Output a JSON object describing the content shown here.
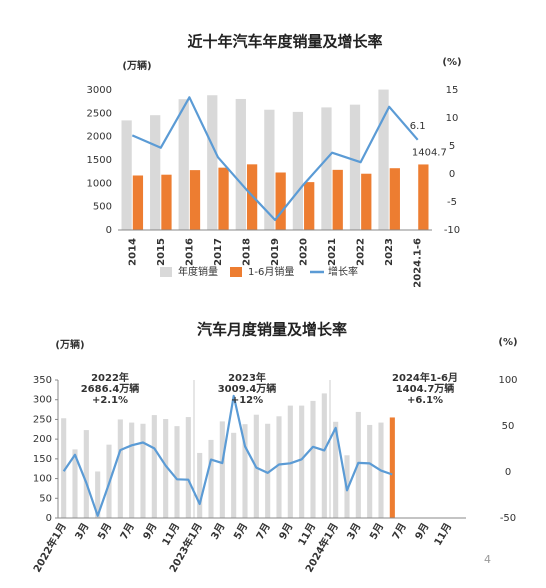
{
  "chart_data": [
    {
      "type": "bar",
      "title": "近十年汽车年度销量及增长率",
      "ylabel": "(万辆)",
      "y2label": "(%)",
      "categories": [
        "2014",
        "2015",
        "2016",
        "2017",
        "2018",
        "2019",
        "2020",
        "2021",
        "2022",
        "2023",
        "2024.1-6"
      ],
      "series": [
        {
          "name": "年度销量",
          "type": "bar",
          "color": "#d9d9d9",
          "values": [
            2349,
            2460,
            2803,
            2888,
            2808,
            2577,
            2531,
            2627,
            2686,
            3009,
            null
          ]
        },
        {
          "name": "1-6月销量",
          "type": "bar",
          "color": "#ed7d31",
          "values": [
            1168,
            1185,
            1283,
            1336,
            1407,
            1232,
            1026,
            1289,
            1206,
            1324,
            1404.7
          ],
          "data_labels": "last"
        },
        {
          "name": "增长率",
          "type": "line",
          "axis": "y2",
          "color": "#5b9bd5",
          "values": [
            6.9,
            4.7,
            13.7,
            3.0,
            -2.8,
            -8.2,
            -1.9,
            3.8,
            2.1,
            12.0,
            6.1
          ],
          "data_labels": "last"
        }
      ],
      "ylim": [
        0,
        3000
      ],
      "yticks": [
        0,
        500,
        1000,
        1500,
        2000,
        2500,
        3000
      ],
      "y2lim": [
        -10,
        15
      ],
      "y2ticks": [
        -10,
        -5,
        0,
        5,
        10,
        15
      ],
      "legend": "bottom",
      "grid": false
    },
    {
      "type": "bar",
      "title": "汽车月度销量及增长率",
      "ylabel": "(万辆)",
      "y2label": "(%)",
      "categories": [
        "2022年1月",
        null,
        "3月",
        null,
        "5月",
        null,
        "7月",
        null,
        "9月",
        null,
        "11月",
        null,
        "2023年1月",
        null,
        "3月",
        null,
        "5月",
        null,
        "7月",
        null,
        "9月",
        null,
        "11月",
        null,
        "2024年1月",
        null,
        "3月",
        null,
        "5月",
        null,
        "7月",
        null,
        "9月",
        null,
        "11月",
        null
      ],
      "series": [
        {
          "type": "bar",
          "color": "#d9d9d9",
          "values": [
            253,
            174,
            223,
            118,
            186,
            250,
            242,
            239,
            261,
            251,
            233,
            256,
            165,
            198,
            245,
            216,
            238,
            262,
            239,
            258,
            285,
            285,
            297,
            316,
            244,
            159,
            269,
            236,
            242,
            null,
            null,
            null,
            null,
            null,
            null,
            null
          ]
        },
        {
          "type": "bar",
          "color": "#ed7d31",
          "values": [
            null,
            null,
            null,
            null,
            null,
            null,
            null,
            null,
            null,
            null,
            null,
            null,
            null,
            null,
            null,
            null,
            null,
            null,
            null,
            null,
            null,
            null,
            null,
            null,
            null,
            null,
            null,
            null,
            null,
            255,
            null,
            null,
            null,
            null,
            null,
            null
          ]
        },
        {
          "type": "line",
          "axis": "y2",
          "color": "#5b9bd5",
          "values": [
            0.9,
            18.7,
            -11.7,
            -47.6,
            -12.6,
            23.8,
            29.0,
            32.1,
            25.7,
            6.9,
            -7.9,
            -8.4,
            -34.8,
            13.5,
            9.7,
            82.7,
            27.9,
            4.8,
            -1.0,
            8.2,
            9.5,
            13.8,
            27.4,
            23.5,
            47.9,
            -19.9,
            9.9,
            9.3,
            1.5,
            -2.7,
            null,
            null,
            null,
            null,
            null,
            null
          ]
        }
      ],
      "ylim": [
        0,
        350
      ],
      "yticks": [
        0,
        50,
        100,
        150,
        200,
        250,
        300,
        350
      ],
      "y2lim": [
        -50,
        100
      ],
      "y2ticks": [
        -50,
        0,
        50,
        100
      ],
      "grid": false,
      "annotations": [
        [
          "2022年",
          "2686.4万辆",
          "+2.1%"
        ],
        [
          "2023年",
          "3009.4万辆",
          "+12%"
        ],
        [
          "2024年1-6月",
          "1404.7万辆",
          "+6.1%"
        ]
      ]
    }
  ],
  "page_number": "4"
}
